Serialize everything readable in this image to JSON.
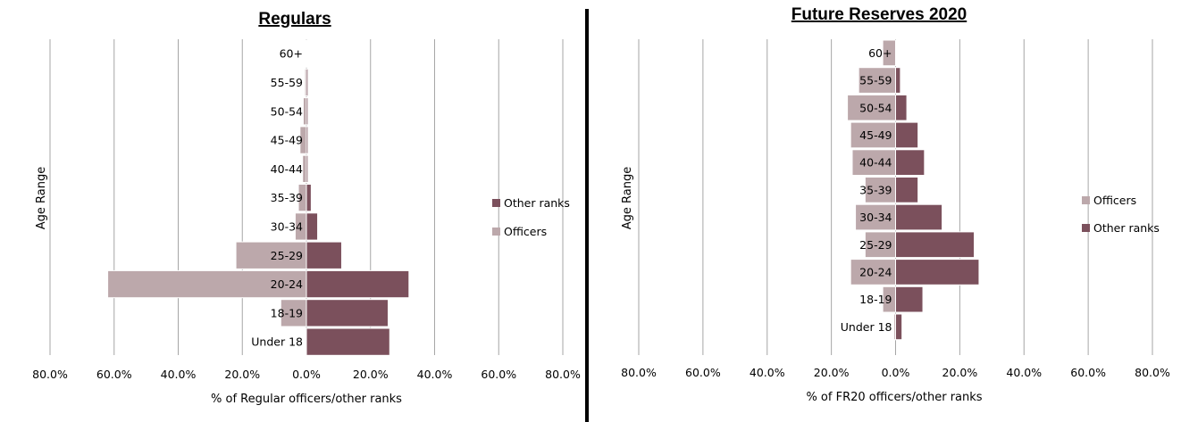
{
  "colors": {
    "officers": "#bca8ab",
    "other_ranks": "#7b505c",
    "grid": "#a6a6a6"
  },
  "chart_data": [
    {
      "type": "bar",
      "orientation": "horizontal-population-pyramid",
      "title": "Regulars",
      "xlabel": "% of Regular officers/other ranks",
      "ylabel": "Age Range",
      "categories": [
        "60+",
        "55-59",
        "50-54",
        "45-49",
        "40-44",
        "35-39",
        "30-34",
        "25-29",
        "20-24",
        "18-19",
        "Under 18"
      ],
      "series": [
        {
          "name": "Officers",
          "values": [
            -0.1,
            -0.5,
            -1.0,
            -2.0,
            -1.2,
            -2.5,
            -3.5,
            -22.0,
            -62.0,
            -8.0,
            0
          ]
        },
        {
          "name": "Other ranks",
          "values": [
            0,
            0.5,
            0.5,
            0.5,
            0.5,
            1.5,
            3.5,
            11.0,
            32.0,
            25.5,
            26.0
          ]
        }
      ],
      "legend_order": [
        "Other ranks",
        "Officers"
      ],
      "xlim": [
        -80,
        80
      ],
      "tick_labels": [
        "80.0%",
        "60.0%",
        "40.0%",
        "20.0%",
        "0.0%",
        "20.0%",
        "40.0%",
        "60.0%",
        "80.0%"
      ],
      "grid": true,
      "legend_position": "right"
    },
    {
      "type": "bar",
      "orientation": "horizontal-population-pyramid",
      "title": "Future Reserves 2020",
      "xlabel": "% of FR20 officers/other ranks",
      "ylabel": "Age Range",
      "categories": [
        "60+",
        "55-59",
        "50-54",
        "45-49",
        "40-44",
        "35-39",
        "30-34",
        "25-29",
        "20-24",
        "18-19",
        "Under 18"
      ],
      "series": [
        {
          "name": "Officers",
          "values": [
            -4.0,
            -11.5,
            -15.0,
            -14.0,
            -13.5,
            -9.5,
            -12.5,
            -9.5,
            -14.0,
            -4.0,
            -0.5
          ]
        },
        {
          "name": "Other ranks",
          "values": [
            0,
            1.5,
            3.5,
            7.0,
            9.0,
            7.0,
            14.5,
            24.5,
            26.0,
            8.5,
            2.0
          ]
        }
      ],
      "legend_order": [
        "Officers",
        "Other ranks"
      ],
      "xlim": [
        -80,
        80
      ],
      "tick_labels": [
        "80.0%",
        "60.0%",
        "40.0%",
        "20.0%",
        "0.0%",
        "20.0%",
        "40.0%",
        "60.0%",
        "80.0%"
      ],
      "grid": true,
      "legend_position": "right"
    }
  ]
}
